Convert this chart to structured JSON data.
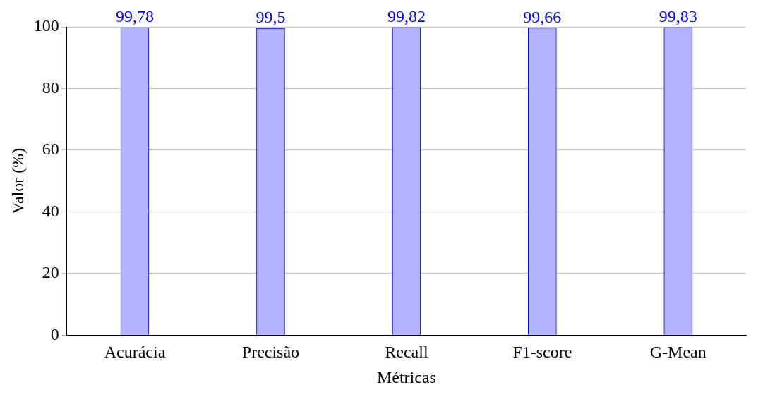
{
  "chart_data": {
    "type": "bar",
    "xlabel": "Métricas",
    "ylabel": "Valor (%)",
    "categories": [
      "Acurácia",
      "Precisão",
      "Recall",
      "F1-score",
      "G-Mean"
    ],
    "values": [
      99.78,
      99.5,
      99.82,
      99.66,
      99.83
    ],
    "color": "#b3b3ff",
    "value_labels": [
      "99,78",
      "99,5",
      "99,82",
      "99,66",
      "99,83"
    ],
    "ylim": [
      0,
      100
    ],
    "yticks": [
      0,
      20,
      40,
      60,
      80,
      100
    ],
    "grid": "y"
  }
}
